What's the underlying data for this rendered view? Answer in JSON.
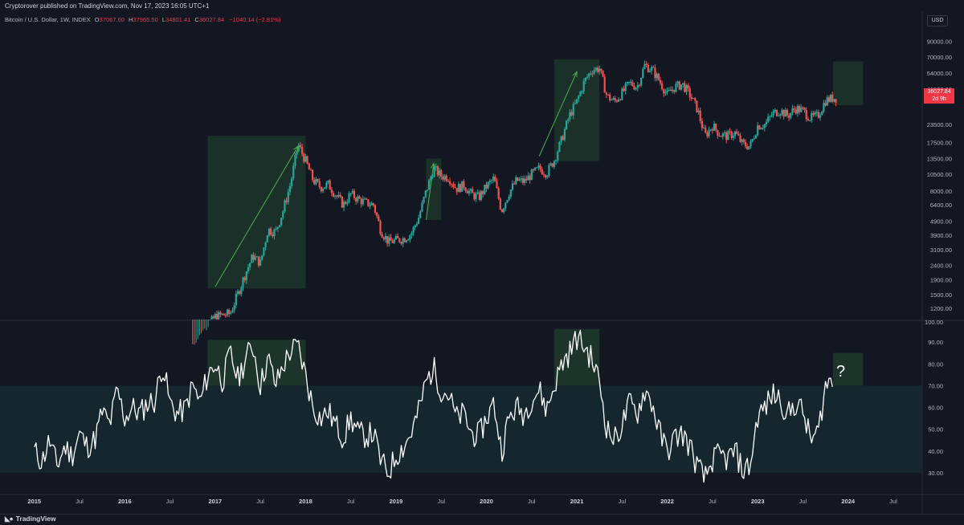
{
  "header": {
    "publisher": "Cryptorover published on TradingView.com, Nov 17, 2023 16:05 UTC+1",
    "symbol": "Bitcoin / U.S. Dollar, 1W, INDEX",
    "open_label": "O",
    "open": "37067.60",
    "high_label": "H",
    "high": "37965.50",
    "low_label": "L",
    "low": "34801.41",
    "close_label": "C",
    "close": "36027.84",
    "change": "−1040.14 (−2.81%)"
  },
  "price_scale": {
    "currency": "USD",
    "badge_price": "36027.84",
    "badge_time": "2d 9h"
  },
  "footer": {
    "brand": "TradingView"
  },
  "annotation": {
    "question_mark": "?"
  },
  "colors": {
    "background": "#131722",
    "up": "#26a69a",
    "down": "#ef5350",
    "box_fill": "#1f3a2b",
    "rsi_band": "#15262e",
    "rsi_line": "#ffffff",
    "badge": "#f23645"
  },
  "chart_data": [
    {
      "type": "candlestick",
      "title": "Bitcoin / U.S. Dollar, 1W, INDEX",
      "scale": "log",
      "ylim": [
        1000,
        110000
      ],
      "y_ticks": [
        90000,
        70000,
        54000,
        41500,
        23500,
        17500,
        13500,
        10500,
        8000,
        6400,
        4900,
        3900,
        3100,
        2400,
        1900,
        1500,
        1200
      ],
      "x_ticks": [
        "2015",
        "Jul",
        "2016",
        "Jul",
        "2017",
        "Jul",
        "2018",
        "Jul",
        "2019",
        "Jul",
        "2020",
        "Jul",
        "2021",
        "Jul",
        "2022",
        "Jul",
        "2023",
        "Jul",
        "2024",
        "Jul"
      ],
      "x_range": [
        "2015-01",
        "2024-08"
      ],
      "price_path": [
        [
          "2016-10",
          650
        ],
        [
          "2017-01",
          1050
        ],
        [
          "2017-03",
          1100
        ],
        [
          "2017-05",
          2100
        ],
        [
          "2017-06",
          2800
        ],
        [
          "2017-07",
          2500
        ],
        [
          "2017-08",
          4300
        ],
        [
          "2017-09",
          4100
        ],
        [
          "2017-10",
          5800
        ],
        [
          "2017-11",
          9000
        ],
        [
          "2017-12",
          17000
        ],
        [
          "2018-01",
          13000
        ],
        [
          "2018-02",
          9500
        ],
        [
          "2018-03",
          8500
        ],
        [
          "2018-04",
          8900
        ],
        [
          "2018-05",
          7500
        ],
        [
          "2018-06",
          6400
        ],
        [
          "2018-07",
          7600
        ],
        [
          "2018-08",
          7000
        ],
        [
          "2018-09",
          6600
        ],
        [
          "2018-10",
          6400
        ],
        [
          "2018-11",
          4200
        ],
        [
          "2018-12",
          3500
        ],
        [
          "2019-01",
          3600
        ],
        [
          "2019-02",
          3700
        ],
        [
          "2019-03",
          4000
        ],
        [
          "2019-04",
          5200
        ],
        [
          "2019-05",
          8000
        ],
        [
          "2019-06",
          11500
        ],
        [
          "2019-07",
          10200
        ],
        [
          "2019-08",
          10000
        ],
        [
          "2019-09",
          8300
        ],
        [
          "2019-10",
          8800
        ],
        [
          "2019-11",
          7600
        ],
        [
          "2019-12",
          7200
        ],
        [
          "2020-01",
          8600
        ],
        [
          "2020-02",
          9800
        ],
        [
          "2020-03",
          5800
        ],
        [
          "2020-04",
          7800
        ],
        [
          "2020-05",
          9500
        ],
        [
          "2020-06",
          9300
        ],
        [
          "2020-07",
          10500
        ],
        [
          "2020-08",
          11500
        ],
        [
          "2020-09",
          10700
        ],
        [
          "2020-10",
          13200
        ],
        [
          "2020-11",
          18500
        ],
        [
          "2020-12",
          27000
        ],
        [
          "2021-01",
          34000
        ],
        [
          "2021-02",
          47000
        ],
        [
          "2021-03",
          57000
        ],
        [
          "2021-04",
          58000
        ],
        [
          "2021-05",
          37000
        ],
        [
          "2021-06",
          34000
        ],
        [
          "2021-07",
          39000
        ],
        [
          "2021-08",
          46000
        ],
        [
          "2021-09",
          43000
        ],
        [
          "2021-10",
          61000
        ],
        [
          "2021-11",
          57000
        ],
        [
          "2021-12",
          47000
        ],
        [
          "2022-01",
          38000
        ],
        [
          "2022-02",
          43000
        ],
        [
          "2022-03",
          45000
        ],
        [
          "2022-04",
          38000
        ],
        [
          "2022-05",
          30000
        ],
        [
          "2022-06",
          19500
        ],
        [
          "2022-07",
          23000
        ],
        [
          "2022-08",
          20000
        ],
        [
          "2022-09",
          19400
        ],
        [
          "2022-10",
          20500
        ],
        [
          "2022-11",
          17000
        ],
        [
          "2022-12",
          16500
        ],
        [
          "2023-01",
          23000
        ],
        [
          "2023-02",
          23500
        ],
        [
          "2023-03",
          28000
        ],
        [
          "2023-04",
          29500
        ],
        [
          "2023-05",
          27000
        ],
        [
          "2023-06",
          30500
        ],
        [
          "2023-07",
          29300
        ],
        [
          "2023-08",
          26000
        ],
        [
          "2023-09",
          27000
        ],
        [
          "2023-10",
          34500
        ],
        [
          "2023-11",
          36027.84
        ]
      ],
      "highlight_boxes": [
        {
          "from": "2016-12",
          "to": "2018-01",
          "low": 1650,
          "high": 19500
        },
        {
          "from": "2019-05",
          "to": "2019-07",
          "low": 5000,
          "high": 13500
        },
        {
          "from": "2020-10",
          "to": "2021-04",
          "low": 13000,
          "high": 67000
        },
        {
          "from": "2023-11",
          "to": "2024-03",
          "low": 32000,
          "high": 65000
        }
      ],
      "trend_arrows": [
        {
          "from": [
            "2017-01",
            1700
          ],
          "to": [
            "2017-12",
            16500
          ]
        },
        {
          "from": [
            "2019-05",
            5000
          ],
          "to": [
            "2019-06",
            12500
          ]
        },
        {
          "from": [
            "2020-08",
            14000
          ],
          "to": [
            "2021-01",
            55000
          ]
        }
      ]
    },
    {
      "type": "line",
      "title": "RSI",
      "ylim": [
        20,
        100
      ],
      "y_ticks": [
        100,
        90,
        80,
        70,
        60,
        50,
        40,
        30
      ],
      "band": [
        30,
        70
      ],
      "series": [
        {
          "values": [
            [
              "2015-01",
              40
            ],
            [
              "2015-02",
              35
            ],
            [
              "2015-03",
              45
            ],
            [
              "2015-04",
              33
            ],
            [
              "2015-05",
              42
            ],
            [
              "2015-06",
              38
            ],
            [
              "2015-07",
              48
            ],
            [
              "2015-08",
              42
            ],
            [
              "2015-09",
              45
            ],
            [
              "2015-10",
              58
            ],
            [
              "2015-11",
              52
            ],
            [
              "2015-12",
              68
            ],
            [
              "2016-01",
              55
            ],
            [
              "2016-02",
              60
            ],
            [
              "2016-03",
              57
            ],
            [
              "2016-04",
              62
            ],
            [
              "2016-05",
              63
            ],
            [
              "2016-06",
              80
            ],
            [
              "2016-07",
              62
            ],
            [
              "2016-08",
              57
            ],
            [
              "2016-09",
              59
            ],
            [
              "2016-10",
              70
            ],
            [
              "2016-11",
              62
            ],
            [
              "2016-12",
              75
            ],
            [
              "2017-01",
              80
            ],
            [
              "2017-02",
              72
            ],
            [
              "2017-03",
              85
            ],
            [
              "2017-04",
              73
            ],
            [
              "2017-05",
              82
            ],
            [
              "2017-06",
              89
            ],
            [
              "2017-07",
              70
            ],
            [
              "2017-08",
              83
            ],
            [
              "2017-09",
              70
            ],
            [
              "2017-10",
              79
            ],
            [
              "2017-11",
              86
            ],
            [
              "2017-12",
              88
            ],
            [
              "2018-01",
              75
            ],
            [
              "2018-02",
              60
            ],
            [
              "2018-03",
              55
            ],
            [
              "2018-04",
              58
            ],
            [
              "2018-05",
              52
            ],
            [
              "2018-06",
              46
            ],
            [
              "2018-07",
              55
            ],
            [
              "2018-08",
              48
            ],
            [
              "2018-09",
              47
            ],
            [
              "2018-10",
              48
            ],
            [
              "2018-11",
              35
            ],
            [
              "2018-12",
              30
            ],
            [
              "2019-01",
              38
            ],
            [
              "2019-02",
              42
            ],
            [
              "2019-03",
              48
            ],
            [
              "2019-04",
              58
            ],
            [
              "2019-05",
              72
            ],
            [
              "2019-06",
              78
            ],
            [
              "2019-07",
              68
            ],
            [
              "2019-08",
              66
            ],
            [
              "2019-09",
              55
            ],
            [
              "2019-10",
              57
            ],
            [
              "2019-11",
              48
            ],
            [
              "2019-12",
              47
            ],
            [
              "2020-01",
              55
            ],
            [
              "2020-02",
              62
            ],
            [
              "2020-03",
              40
            ],
            [
              "2020-04",
              55
            ],
            [
              "2020-05",
              60
            ],
            [
              "2020-06",
              57
            ],
            [
              "2020-07",
              64
            ],
            [
              "2020-08",
              68
            ],
            [
              "2020-09",
              59
            ],
            [
              "2020-10",
              70
            ],
            [
              "2020-11",
              80
            ],
            [
              "2020-12",
              85
            ],
            [
              "2021-01",
              92
            ],
            [
              "2021-02",
              88
            ],
            [
              "2021-03",
              82
            ],
            [
              "2021-04",
              72
            ],
            [
              "2021-05",
              50
            ],
            [
              "2021-06",
              45
            ],
            [
              "2021-07",
              52
            ],
            [
              "2021-08",
              62
            ],
            [
              "2021-09",
              57
            ],
            [
              "2021-10",
              68
            ],
            [
              "2021-11",
              62
            ],
            [
              "2021-12",
              48
            ],
            [
              "2022-01",
              40
            ],
            [
              "2022-02",
              46
            ],
            [
              "2022-03",
              48
            ],
            [
              "2022-04",
              42
            ],
            [
              "2022-05",
              33
            ],
            [
              "2022-06",
              27
            ],
            [
              "2022-07",
              36
            ],
            [
              "2022-08",
              38
            ],
            [
              "2022-09",
              36
            ],
            [
              "2022-10",
              40
            ],
            [
              "2022-11",
              31
            ],
            [
              "2022-12",
              33
            ],
            [
              "2023-01",
              56
            ],
            [
              "2023-02",
              60
            ],
            [
              "2023-03",
              66
            ],
            [
              "2023-04",
              64
            ],
            [
              "2023-05",
              56
            ],
            [
              "2023-06",
              62
            ],
            [
              "2023-07",
              58
            ],
            [
              "2023-08",
              45
            ],
            [
              "2023-09",
              48
            ],
            [
              "2023-10",
              70
            ],
            [
              "2023-11",
              73
            ]
          ]
        }
      ],
      "highlight_boxes": [
        {
          "from": "2016-12",
          "to": "2018-01",
          "low": 70,
          "high": 91
        },
        {
          "from": "2020-10",
          "to": "2021-04",
          "low": 70,
          "high": 96
        },
        {
          "from": "2023-11",
          "to": "2024-03",
          "low": 70,
          "high": 85
        }
      ]
    }
  ]
}
